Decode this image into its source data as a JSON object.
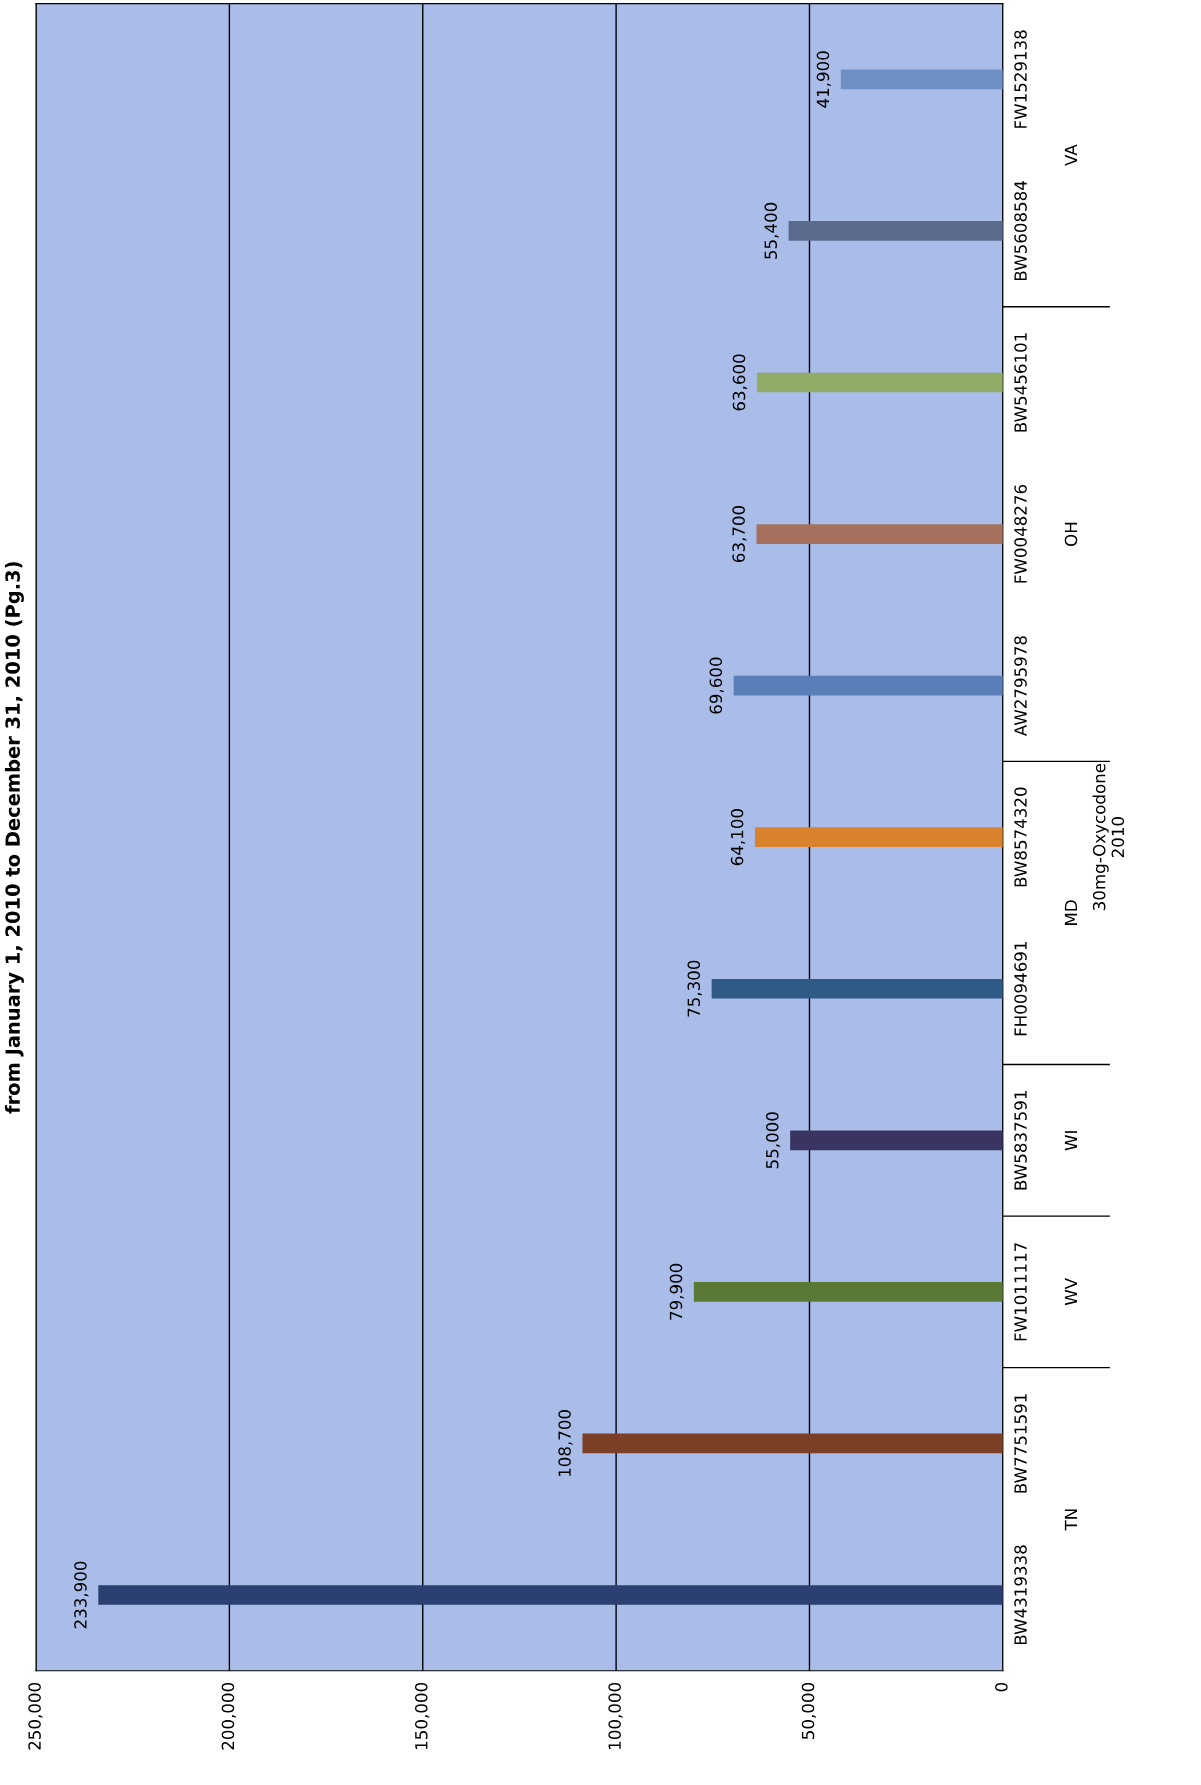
{
  "chart_data": {
    "type": "bar",
    "orientation": "horizontal",
    "title": "from January 1, 2010 to December 31, 2010 (Pg.3)",
    "ylabel": "30mg-Oxycodone\n2010",
    "categories": [
      "FW1529138",
      "BW5608584",
      "BW5456101",
      "FW0048276",
      "AW2795978",
      "BW8574320",
      "FH0094691",
      "BW5837591",
      "FW1011117",
      "BW7751591",
      "BW4319338"
    ],
    "values": [
      41900,
      55400,
      63600,
      63700,
      69600,
      64100,
      75300,
      55000,
      79900,
      108700,
      233900
    ],
    "colors": [
      "#6e90c4",
      "#5c6a8e",
      "#8fab66",
      "#a5705e",
      "#5a7fb8",
      "#d8822e",
      "#2f5a86",
      "#3a3462",
      "#5b7936",
      "#7a3f24",
      "#2b3f70"
    ],
    "value_labels": [
      "41,900",
      "55,400",
      "63,600",
      "63,700",
      "69,600",
      "64,100",
      "75,300",
      "55,000",
      "79,900",
      "108,700",
      "233,900"
    ],
    "xlim": [
      250000,
      0
    ],
    "xticks": [
      {
        "value": 250000,
        "label": "250,000"
      },
      {
        "value": 200000,
        "label": "200,000"
      },
      {
        "value": 150000,
        "label": "150,000"
      },
      {
        "value": 100000,
        "label": "100,000"
      },
      {
        "value": 50000,
        "label": "50,000"
      },
      0
    ],
    "grid": "x",
    "annotations": [
      "VA",
      "OH",
      "MD",
      "WI",
      "WV",
      "TN"
    ]
  }
}
